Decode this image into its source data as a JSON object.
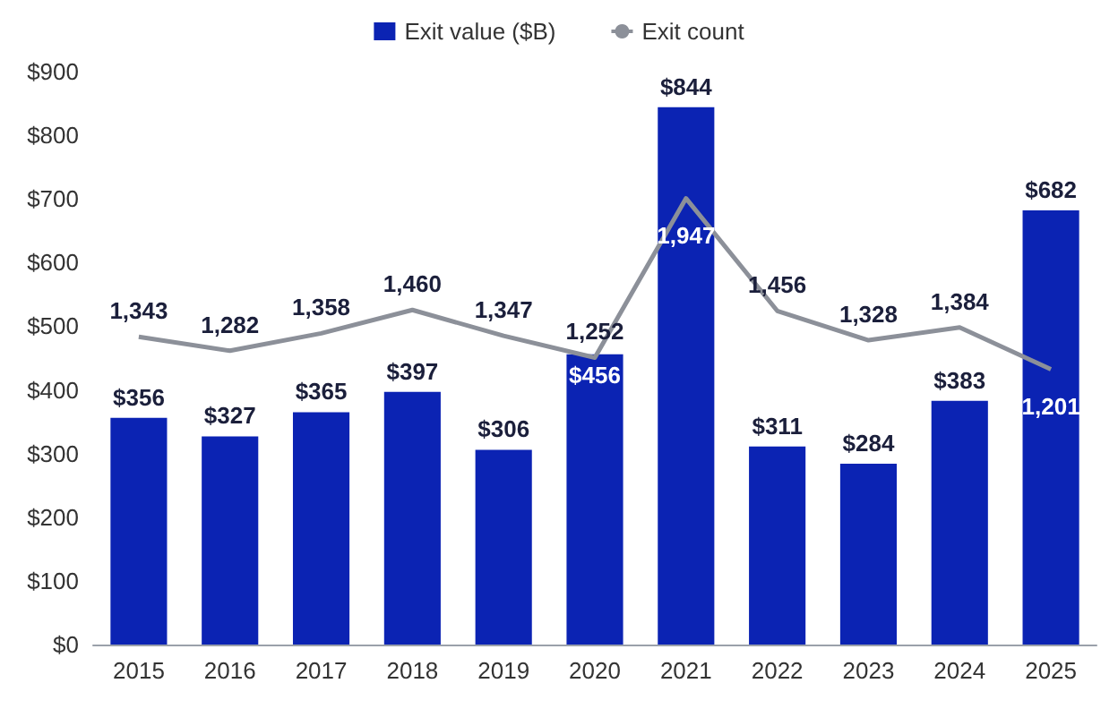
{
  "chart_data": {
    "type": "bar",
    "categories": [
      "2015",
      "2016",
      "2017",
      "2018",
      "2019",
      "2020",
      "2021",
      "2022",
      "2023",
      "2024",
      "2025"
    ],
    "series": [
      {
        "name": "Exit value ($B)",
        "color": "#0b23b3",
        "values": [
          356,
          327,
          365,
          397,
          306,
          456,
          844,
          311,
          284,
          383,
          682
        ],
        "value_labels": [
          "$356",
          "$327",
          "$365",
          "$397",
          "$306",
          "$456",
          "$844",
          "$311",
          "$284",
          "$383",
          "$682"
        ]
      },
      {
        "name": "Exit count",
        "type": "line",
        "axis": "y2",
        "color": "#8c9099",
        "marker": "none",
        "values": [
          1343,
          1282,
          1358,
          1460,
          1347,
          1252,
          1947,
          1456,
          1328,
          1384,
          1201
        ],
        "value_labels": [
          "1,343",
          "1,282",
          "1,358",
          "1,460",
          "1,347",
          "1,252",
          "1,947",
          "1,456",
          "1,328",
          "1,384",
          "1,201"
        ]
      }
    ],
    "ylim": [
      0,
      900
    ],
    "yticks": [
      {
        "value": 0,
        "label": "$0"
      },
      {
        "value": 100,
        "label": "$100"
      },
      {
        "value": 200,
        "label": "$200"
      },
      {
        "value": 300,
        "label": "$300"
      },
      {
        "value": 400,
        "label": "$400"
      },
      {
        "value": 500,
        "label": "$500"
      },
      {
        "value": 600,
        "label": "$600"
      },
      {
        "value": 700,
        "label": "$700"
      },
      {
        "value": 800,
        "label": "$800"
      },
      {
        "value": 900,
        "label": "$900"
      }
    ],
    "tick_labels": "xy",
    "grid": false,
    "legend": "top"
  }
}
